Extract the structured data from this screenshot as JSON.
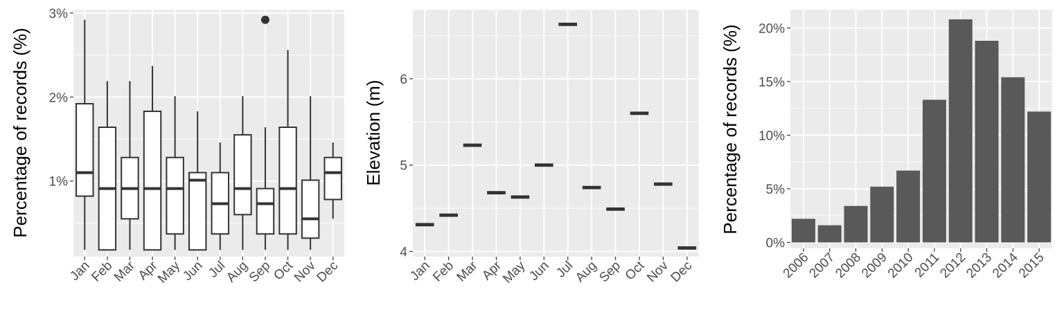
{
  "chart_data": [
    {
      "type": "box",
      "ylabel": "Percentage of records (%)",
      "ylim": [
        0.1,
        3.04
      ],
      "yticks": [
        1,
        2,
        3
      ],
      "ytick_labels": [
        "1%",
        "2%",
        "3%"
      ],
      "categories": [
        "Jan",
        "Feb",
        "Mar",
        "Apr",
        "May",
        "Jun",
        "Jul",
        "Aug",
        "Sep",
        "Oct",
        "Nov",
        "Dec"
      ],
      "boxes": [
        {
          "min": 0.18,
          "q1": 0.82,
          "median": 1.1,
          "q3": 1.92,
          "max": 2.92
        },
        {
          "min": 0.18,
          "q1": 0.18,
          "median": 0.91,
          "q3": 1.64,
          "max": 2.19
        },
        {
          "min": 0.18,
          "q1": 0.55,
          "median": 0.91,
          "q3": 1.28,
          "max": 2.19
        },
        {
          "min": 0.18,
          "q1": 0.18,
          "median": 0.91,
          "q3": 1.83,
          "max": 2.37
        },
        {
          "min": 0.18,
          "q1": 0.37,
          "median": 0.91,
          "q3": 1.28,
          "max": 2.01
        },
        {
          "min": 0.18,
          "q1": 0.18,
          "median": 1.01,
          "q3": 1.1,
          "max": 1.83
        },
        {
          "min": 0.18,
          "q1": 0.37,
          "median": 0.73,
          "q3": 1.1,
          "max": 1.46
        },
        {
          "min": 0.18,
          "q1": 0.6,
          "median": 0.91,
          "q3": 1.55,
          "max": 2.01
        },
        {
          "min": 0.18,
          "q1": 0.37,
          "median": 0.73,
          "q3": 0.91,
          "max": 1.64
        },
        {
          "min": 0.18,
          "q1": 0.37,
          "median": 0.91,
          "q3": 1.64,
          "max": 2.56
        },
        {
          "min": 0.18,
          "q1": 0.32,
          "median": 0.55,
          "q3": 1.01,
          "max": 2.01
        },
        {
          "min": 0.55,
          "q1": 0.78,
          "median": 1.1,
          "q3": 1.28,
          "max": 1.46
        }
      ],
      "outliers": [
        {
          "category": "Sep",
          "value": 2.92
        }
      ]
    },
    {
      "type": "crossbar",
      "ylabel": "Elevation (m)",
      "ylim": [
        3.94,
        6.8
      ],
      "yticks": [
        4,
        5,
        6
      ],
      "ytick_labels": [
        "4",
        "5",
        "6"
      ],
      "categories": [
        "Jan",
        "Feb",
        "Mar",
        "Apr",
        "May",
        "Jun",
        "Jul",
        "Aug",
        "Sep",
        "Oct",
        "Nov",
        "Dec"
      ],
      "values": [
        4.31,
        4.42,
        5.23,
        4.68,
        4.63,
        5.0,
        6.63,
        4.74,
        4.49,
        5.6,
        4.78,
        4.04
      ]
    },
    {
      "type": "bar",
      "ylabel": "Percentage of records (%)",
      "ylim": [
        -0.55,
        21.7
      ],
      "yticks": [
        0,
        5,
        10,
        15,
        20
      ],
      "ytick_labels": [
        "0%",
        "5%",
        "10%",
        "15%",
        "20%"
      ],
      "categories": [
        "2006",
        "2007",
        "2008",
        "2009",
        "2010",
        "2011",
        "2012",
        "2013",
        "2014",
        "2015"
      ],
      "values": [
        2.2,
        1.6,
        3.4,
        5.2,
        6.7,
        13.3,
        20.8,
        18.8,
        15.4,
        12.2
      ],
      "bar_color": "#595959"
    }
  ]
}
